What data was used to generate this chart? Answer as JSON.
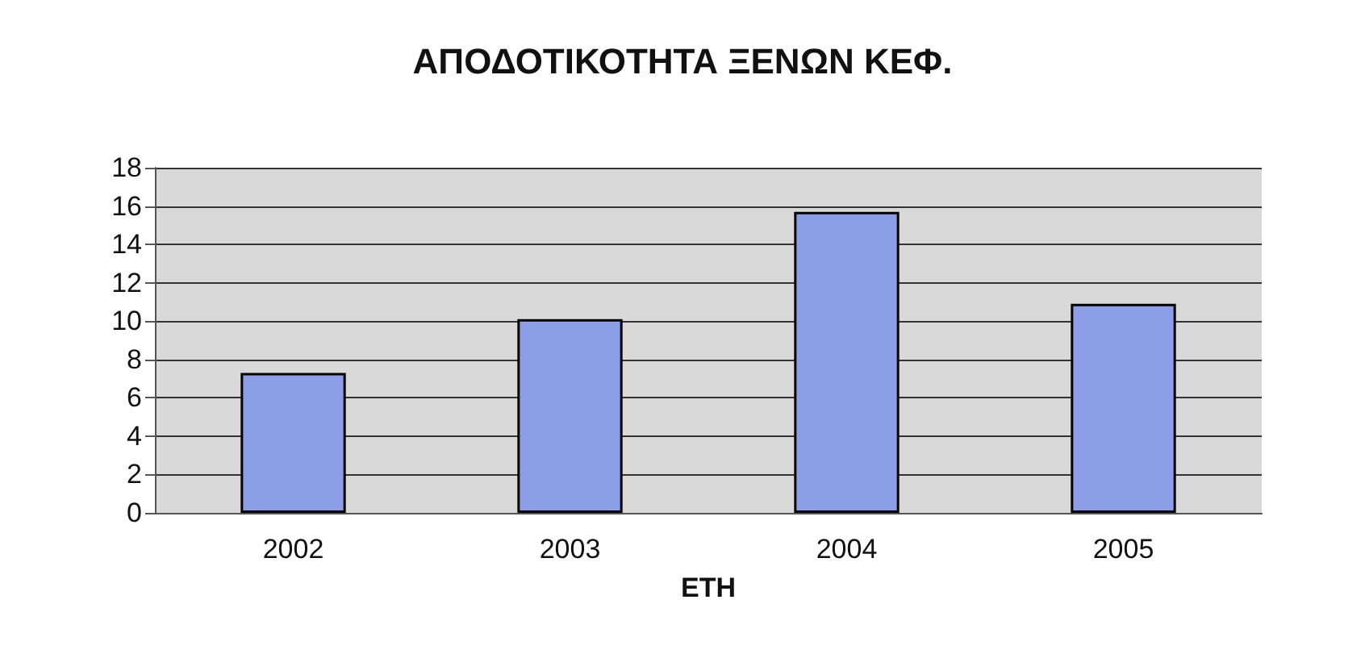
{
  "chart_data": {
    "type": "bar",
    "title": "ΑΠΟΔΟΤΙΚΟΤΗΤΑ ΞΕΝΩΝ ΚΕΦ.",
    "xlabel": "ΕΤΗ",
    "categories": [
      "2002",
      "2003",
      "2004",
      "2005"
    ],
    "values": [
      7.3,
      10.1,
      15.7,
      10.9
    ],
    "color": "#8c9ee6",
    "ylim": [
      0,
      18
    ],
    "yticks": [
      0,
      2,
      4,
      6,
      8,
      10,
      12,
      14,
      16,
      18
    ],
    "grid": "y"
  }
}
